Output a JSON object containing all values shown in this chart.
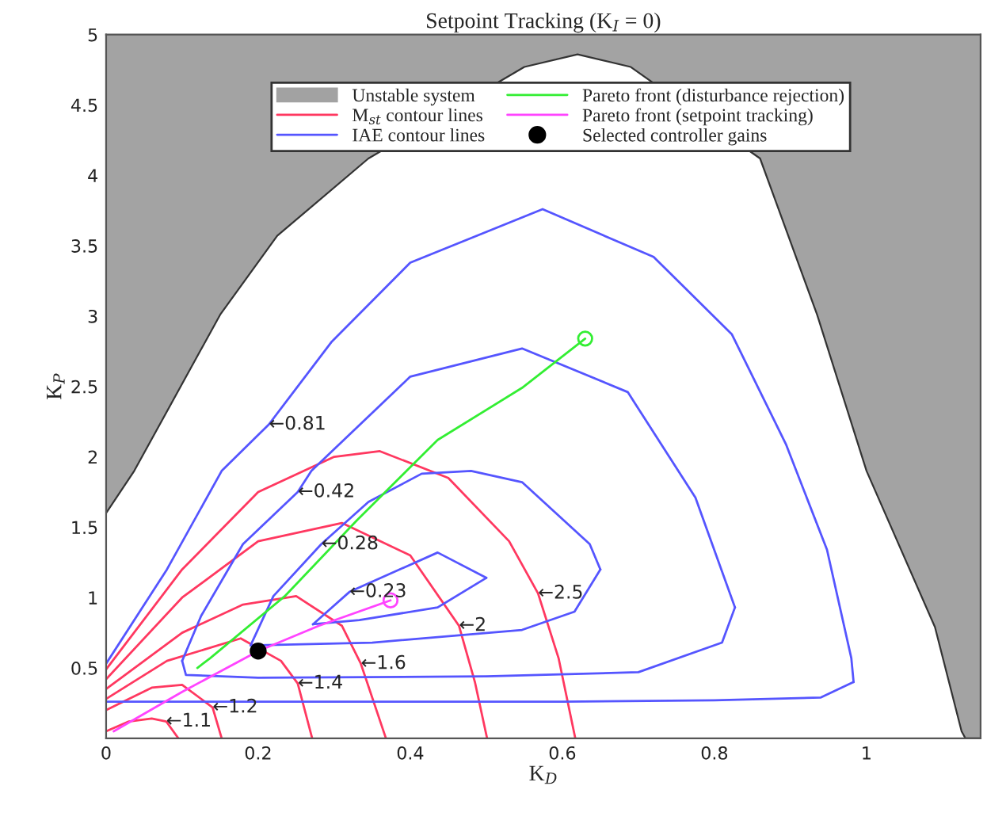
{
  "chart_data": {
    "type": "line",
    "title": "Setpoint Tracking (K$_{I}$ = 0)",
    "xlabel": "K$_{D}$",
    "ylabel": "K$_{P}$",
    "xlim": [
      0,
      1.15
    ],
    "ylim": [
      0,
      5
    ],
    "xticks": [
      0,
      0.2,
      0.4,
      0.6,
      0.8,
      1
    ],
    "yticks": [
      0.5,
      1,
      1.5,
      2,
      2.5,
      3,
      3.5,
      4,
      4.5,
      5
    ],
    "grid": false,
    "legend": "top",
    "series": [
      {
        "type": "line",
        "name": "Unstable system",
        "color": "#333333",
        "x": [
          0,
          0.037,
          0.15,
          0.225,
          0.345,
          0.55,
          0.62,
          0.69,
          0.86,
          0.935,
          1.0,
          1.09,
          1.125,
          1.13,
          1.15
        ],
        "values": [
          1.6,
          1.9,
          3.01,
          3.57,
          4.12,
          4.77,
          4.86,
          4.77,
          4.12,
          3.01,
          1.9,
          0.79,
          0.05,
          0,
          0
        ],
        "lower": [
          1.6,
          1.9,
          3.01,
          3.57,
          4.12,
          4.77,
          4.86,
          4.77,
          4.12,
          3.01,
          1.9,
          0.79,
          0.05,
          0,
          0
        ],
        "upper": [
          5,
          5,
          5,
          5,
          5,
          5,
          5,
          5,
          5,
          5,
          5,
          5,
          5,
          5,
          5
        ]
      },
      {
        "name": "M$_{st}$ contour lines",
        "color": "#ff3860",
        "x": [
          0,
          0.1,
          0.2,
          0.3,
          0.36,
          0.45,
          0.53,
          0.568,
          0.595,
          0.617
        ],
        "values": [
          0.49,
          1.2,
          1.75,
          2.0,
          2.04,
          1.85,
          1.4,
          1.03,
          0.57,
          0
        ]
      },
      {
        "color": "#ff3860",
        "x": [
          0,
          0.1,
          0.2,
          0.31,
          0.4,
          0.464,
          0.485,
          0.501
        ],
        "values": [
          0.42,
          1.0,
          1.4,
          1.53,
          1.3,
          0.8,
          0.4,
          0
        ]
      },
      {
        "color": "#ff3860",
        "x": [
          0,
          0.1,
          0.18,
          0.25,
          0.31,
          0.335,
          0.368
        ],
        "values": [
          0.35,
          0.75,
          0.95,
          1.01,
          0.8,
          0.53,
          0
        ]
      },
      {
        "color": "#ff3860",
        "x": [
          0,
          0.08,
          0.177,
          0.23,
          0.252,
          0.271
        ],
        "values": [
          0.28,
          0.55,
          0.71,
          0.55,
          0.39,
          0
        ]
      },
      {
        "color": "#ff3860",
        "x": [
          0,
          0.06,
          0.1,
          0.14,
          0.152
        ],
        "values": [
          0.2,
          0.36,
          0.38,
          0.22,
          0
        ]
      },
      {
        "color": "#ff3860",
        "x": [
          0,
          0.03,
          0.06,
          0.079,
          0.095
        ],
        "values": [
          0.05,
          0.12,
          0.14,
          0.12,
          0
        ]
      },
      {
        "name": "IAE contour lines",
        "color": "#5555ff",
        "x": [
          0,
          0.08,
          0.152,
          0.214,
          0.297,
          0.4,
          0.574,
          0.72,
          0.823,
          0.894,
          0.948,
          0.98,
          0.983
        ],
        "values": [
          0.53,
          1.2,
          1.9,
          2.23,
          2.82,
          3.38,
          3.76,
          3.42,
          2.87,
          2.09,
          1.34,
          0.57,
          0.4
        ]
      },
      {
        "color": "#5555ff",
        "x": [
          0,
          0.3,
          0.6,
          0.8,
          0.94,
          0.983
        ],
        "values": [
          0.26,
          0.26,
          0.26,
          0.27,
          0.29,
          0.4
        ]
      },
      {
        "color": "#5555ff",
        "x": [
          0.1,
          0.125,
          0.18,
          0.252,
          0.27,
          0.4,
          0.547,
          0.686,
          0.775,
          0.827
        ],
        "values": [
          0.55,
          0.87,
          1.38,
          1.75,
          1.9,
          2.57,
          2.77,
          2.46,
          1.71,
          0.93
        ]
      },
      {
        "color": "#5555ff",
        "x": [
          0.1,
          0.105,
          0.2,
          0.5,
          0.7,
          0.81,
          0.827
        ],
        "values": [
          0.55,
          0.45,
          0.43,
          0.44,
          0.47,
          0.68,
          0.93
        ]
      },
      {
        "color": "#5555ff",
        "x": [
          0.19,
          0.22,
          0.283,
          0.345,
          0.415,
          0.48,
          0.547,
          0.636,
          0.65
        ],
        "values": [
          0.66,
          1.01,
          1.38,
          1.68,
          1.88,
          1.9,
          1.82,
          1.38,
          1.2
        ]
      },
      {
        "color": "#5555ff",
        "x": [
          0.19,
          0.35,
          0.547,
          0.616,
          0.65
        ],
        "values": [
          0.66,
          0.68,
          0.77,
          0.9,
          1.2
        ]
      },
      {
        "color": "#5555ff",
        "x": [
          0.272,
          0.32,
          0.436,
          0.5
        ],
        "values": [
          0.81,
          1.04,
          1.32,
          1.14
        ]
      },
      {
        "color": "#5555ff",
        "x": [
          0.272,
          0.333,
          0.436,
          0.5
        ],
        "values": [
          0.81,
          0.84,
          0.93,
          1.14
        ]
      },
      {
        "name": "Pareto front (disturbance rejection)",
        "color": "#33ee33",
        "x": [
          0.12,
          0.137,
          0.235,
          0.33,
          0.436,
          0.547,
          0.63
        ],
        "values": [
          0.5,
          0.57,
          1.01,
          1.55,
          2.12,
          2.49,
          2.84
        ]
      },
      {
        "name": "Pareto front (setpoint tracking)",
        "color": "#ff44ff",
        "x": [
          0.01,
          0.1,
          0.2,
          0.28,
          0.374
        ],
        "values": [
          0.05,
          0.33,
          0.62,
          0.8,
          0.98
        ]
      },
      {
        "type": "scatter",
        "color": "#33ee33",
        "marker": "circle",
        "x": [
          0.63
        ],
        "values": [
          2.84
        ]
      },
      {
        "type": "scatter",
        "color": "#ff44ff",
        "marker": "circle",
        "x": [
          0.374
        ],
        "values": [
          0.98
        ]
      },
      {
        "type": "scatter",
        "name": "Selected controller gains",
        "color": "#000000",
        "marker": "circle",
        "x": [
          0.2
        ],
        "values": [
          0.62
        ]
      }
    ],
    "annotations": [
      {
        "text": "←0.81",
        "x": 0.214,
        "y": 2.23
      },
      {
        "text": "←0.42",
        "x": 0.252,
        "y": 1.75
      },
      {
        "text": "←0.28",
        "x": 0.283,
        "y": 1.38
      },
      {
        "text": "←0.23",
        "x": 0.32,
        "y": 1.04
      },
      {
        "text": "←2.5",
        "x": 0.568,
        "y": 1.03
      },
      {
        "text": "←2",
        "x": 0.464,
        "y": 0.8
      },
      {
        "text": "←1.6",
        "x": 0.335,
        "y": 0.53
      },
      {
        "text": "←1.4",
        "x": 0.252,
        "y": 0.39
      },
      {
        "text": "←1.2",
        "x": 0.14,
        "y": 0.22
      },
      {
        "text": "←1.1",
        "x": 0.079,
        "y": 0.12
      }
    ]
  }
}
